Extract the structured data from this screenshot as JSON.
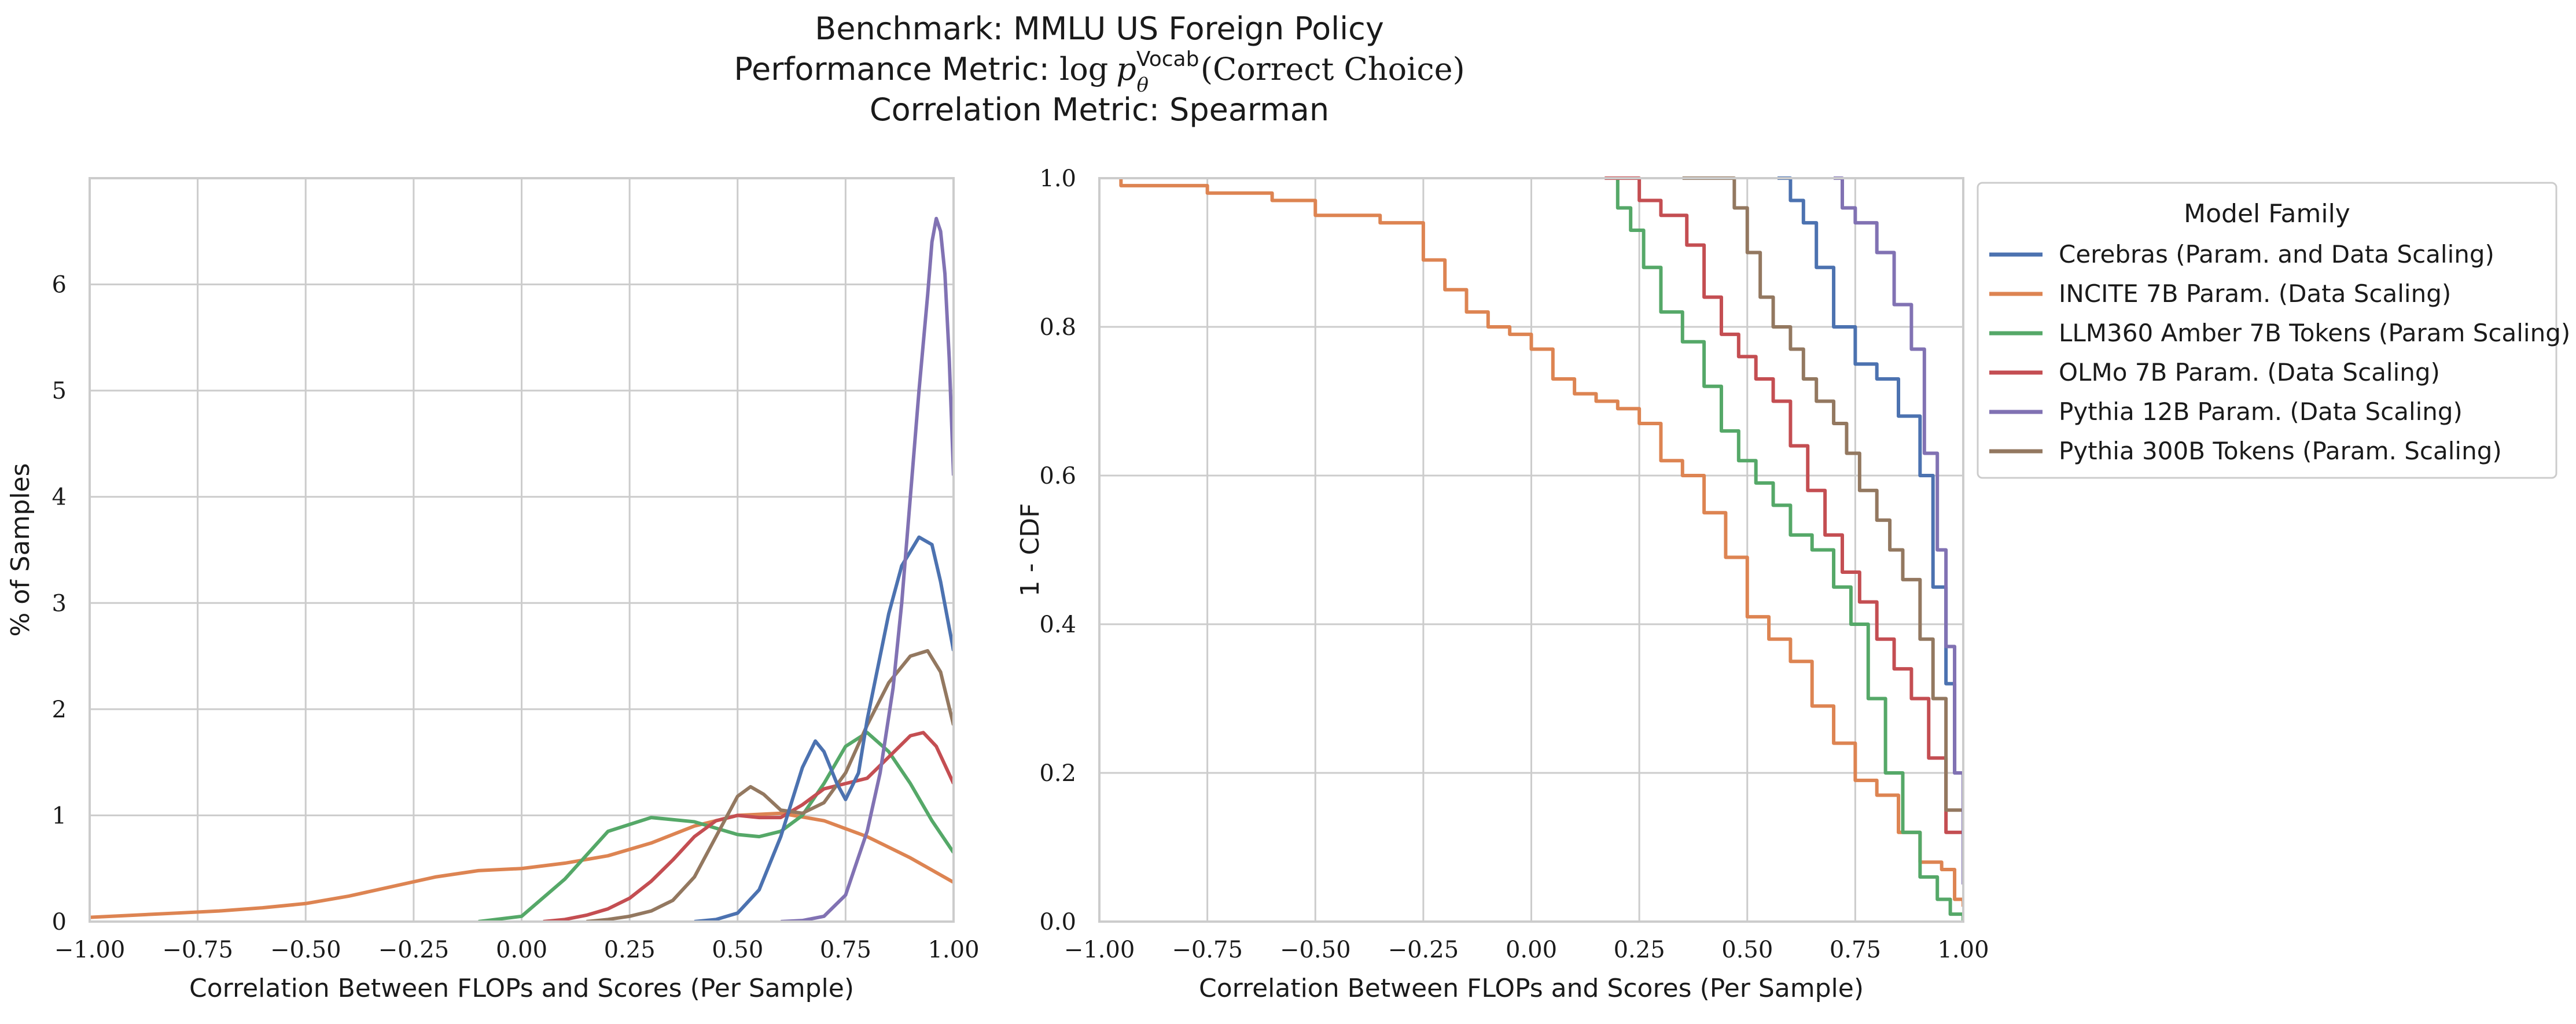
{
  "title": {
    "line1": "Benchmark: MMLU US Foreign Policy",
    "line2_prefix": "Performance Metric: ",
    "line2_math_log": "log",
    "line2_math_p": "p",
    "line2_math_sup": "Vocab",
    "line2_math_sub": "θ",
    "line2_suffix": "(Correct Choice)",
    "line3": "Correlation Metric: Spearman"
  },
  "colors": {
    "Cerebras": "#4c72b0",
    "INCITE": "#dd8452",
    "LLM360": "#55a868",
    "OLMo": "#c44e52",
    "Pythia12B": "#8172b3",
    "Pythia300B": "#937860"
  },
  "legend": {
    "title": "Model Family",
    "entries": [
      {
        "key": "Cerebras",
        "label": "Cerebras (Param. and Data Scaling)"
      },
      {
        "key": "INCITE",
        "label": "INCITE 7B Param. (Data Scaling)"
      },
      {
        "key": "LLM360",
        "label": "LLM360 Amber 7B Tokens (Param Scaling)"
      },
      {
        "key": "OLMo",
        "label": "OLMo 7B Param. (Data Scaling)"
      },
      {
        "key": "Pythia12B",
        "label": "Pythia 12B Param. (Data Scaling)"
      },
      {
        "key": "Pythia300B",
        "label": "Pythia 300B Tokens (Param. Scaling)"
      }
    ]
  },
  "chart_data": [
    {
      "type": "line",
      "xlabel": "Correlation Between FLOPs and Scores (Per Sample)",
      "ylabel": "% of Samples",
      "xlim": [
        -1.0,
        1.0
      ],
      "ylim": [
        0,
        7
      ],
      "xticks": [
        "−1.00",
        "−0.75",
        "−0.50",
        "−0.25",
        "0.00",
        "0.25",
        "0.50",
        "0.75",
        "1.00"
      ],
      "yticks": [
        "0",
        "1",
        "2",
        "3",
        "4",
        "5",
        "6"
      ],
      "grid": true,
      "series": [
        {
          "key": "INCITE",
          "x": [
            -1.0,
            -0.9,
            -0.8,
            -0.7,
            -0.6,
            -0.5,
            -0.4,
            -0.3,
            -0.2,
            -0.1,
            0.0,
            0.1,
            0.2,
            0.3,
            0.4,
            0.5,
            0.6,
            0.7,
            0.8,
            0.9,
            1.0
          ],
          "y": [
            0.04,
            0.06,
            0.08,
            0.1,
            0.13,
            0.17,
            0.24,
            0.33,
            0.42,
            0.48,
            0.5,
            0.55,
            0.62,
            0.74,
            0.9,
            1.0,
            1.02,
            0.95,
            0.8,
            0.6,
            0.37
          ]
        },
        {
          "key": "LLM360",
          "x": [
            -0.1,
            0.0,
            0.1,
            0.2,
            0.3,
            0.4,
            0.45,
            0.5,
            0.55,
            0.6,
            0.65,
            0.7,
            0.75,
            0.8,
            0.85,
            0.9,
            0.95,
            1.0
          ],
          "y": [
            0.0,
            0.05,
            0.4,
            0.85,
            0.98,
            0.94,
            0.88,
            0.82,
            0.8,
            0.85,
            1.0,
            1.3,
            1.65,
            1.78,
            1.6,
            1.3,
            0.95,
            0.65
          ]
        },
        {
          "key": "OLMo",
          "x": [
            0.05,
            0.1,
            0.15,
            0.2,
            0.25,
            0.3,
            0.35,
            0.4,
            0.45,
            0.5,
            0.55,
            0.6,
            0.65,
            0.7,
            0.75,
            0.8,
            0.85,
            0.9,
            0.93,
            0.96,
            1.0
          ],
          "y": [
            0.0,
            0.02,
            0.06,
            0.12,
            0.22,
            0.38,
            0.58,
            0.8,
            0.95,
            1.0,
            0.98,
            0.98,
            1.1,
            1.25,
            1.3,
            1.35,
            1.55,
            1.75,
            1.78,
            1.65,
            1.3
          ]
        },
        {
          "key": "Pythia300B",
          "x": [
            0.15,
            0.2,
            0.25,
            0.3,
            0.35,
            0.4,
            0.45,
            0.5,
            0.53,
            0.56,
            0.6,
            0.65,
            0.7,
            0.75,
            0.8,
            0.85,
            0.9,
            0.94,
            0.97,
            1.0
          ],
          "y": [
            0.0,
            0.02,
            0.05,
            0.1,
            0.2,
            0.42,
            0.8,
            1.18,
            1.27,
            1.2,
            1.05,
            1.02,
            1.12,
            1.4,
            1.85,
            2.25,
            2.5,
            2.55,
            2.35,
            1.85
          ]
        },
        {
          "key": "Cerebras",
          "x": [
            0.4,
            0.45,
            0.5,
            0.55,
            0.6,
            0.65,
            0.68,
            0.7,
            0.73,
            0.75,
            0.78,
            0.8,
            0.85,
            0.88,
            0.92,
            0.95,
            0.97,
            1.0
          ],
          "y": [
            0.0,
            0.02,
            0.08,
            0.3,
            0.8,
            1.45,
            1.7,
            1.6,
            1.3,
            1.15,
            1.4,
            1.9,
            2.9,
            3.35,
            3.62,
            3.55,
            3.2,
            2.55
          ]
        },
        {
          "key": "Pythia12B",
          "x": [
            0.6,
            0.65,
            0.7,
            0.75,
            0.8,
            0.83,
            0.86,
            0.88,
            0.9,
            0.92,
            0.94,
            0.95,
            0.96,
            0.97,
            0.98,
            0.99,
            1.0
          ],
          "y": [
            0.0,
            0.01,
            0.05,
            0.25,
            0.85,
            1.4,
            2.2,
            3.0,
            4.0,
            5.0,
            5.9,
            6.4,
            6.62,
            6.5,
            6.1,
            5.3,
            4.2
          ]
        }
      ]
    },
    {
      "type": "line",
      "xlabel": "Correlation Between FLOPs and Scores (Per Sample)",
      "ylabel": "1 - CDF",
      "xlim": [
        -1.0,
        1.0
      ],
      "ylim": [
        0,
        1.0
      ],
      "xticks": [
        "−1.00",
        "−0.75",
        "−0.50",
        "−0.25",
        "0.00",
        "0.25",
        "0.50",
        "0.75",
        "1.00"
      ],
      "yticks": [
        "0.0",
        "0.2",
        "0.4",
        "0.6",
        "0.8",
        "1.0"
      ],
      "grid": true,
      "series": [
        {
          "key": "INCITE",
          "x": [
            -0.95,
            -0.75,
            -0.6,
            -0.5,
            -0.35,
            -0.25,
            -0.2,
            -0.15,
            -0.1,
            -0.05,
            0.0,
            0.05,
            0.1,
            0.15,
            0.2,
            0.25,
            0.3,
            0.35,
            0.4,
            0.45,
            0.5,
            0.55,
            0.6,
            0.65,
            0.7,
            0.75,
            0.8,
            0.85,
            0.9,
            0.95,
            0.98,
            1.0
          ],
          "y": [
            0.99,
            0.98,
            0.97,
            0.95,
            0.94,
            0.89,
            0.85,
            0.82,
            0.8,
            0.79,
            0.77,
            0.73,
            0.71,
            0.7,
            0.69,
            0.67,
            0.62,
            0.6,
            0.55,
            0.49,
            0.41,
            0.38,
            0.35,
            0.29,
            0.24,
            0.19,
            0.17,
            0.12,
            0.08,
            0.07,
            0.03,
            0.02
          ]
        },
        {
          "key": "LLM360",
          "x": [
            0.17,
            0.2,
            0.23,
            0.26,
            0.3,
            0.35,
            0.4,
            0.44,
            0.48,
            0.52,
            0.56,
            0.6,
            0.65,
            0.7,
            0.74,
            0.78,
            0.82,
            0.86,
            0.9,
            0.94,
            0.97,
            1.0
          ],
          "y": [
            1.0,
            0.96,
            0.93,
            0.88,
            0.82,
            0.78,
            0.72,
            0.66,
            0.62,
            0.59,
            0.56,
            0.52,
            0.5,
            0.45,
            0.4,
            0.3,
            0.2,
            0.12,
            0.06,
            0.03,
            0.01,
            0.0
          ]
        },
        {
          "key": "OLMo",
          "x": [
            0.17,
            0.25,
            0.3,
            0.36,
            0.4,
            0.44,
            0.48,
            0.52,
            0.56,
            0.6,
            0.64,
            0.68,
            0.72,
            0.76,
            0.8,
            0.84,
            0.88,
            0.92,
            0.96,
            1.0
          ],
          "y": [
            1.0,
            0.97,
            0.95,
            0.91,
            0.84,
            0.79,
            0.76,
            0.73,
            0.7,
            0.64,
            0.58,
            0.52,
            0.47,
            0.43,
            0.38,
            0.34,
            0.3,
            0.22,
            0.12,
            0.07
          ]
        },
        {
          "key": "Pythia300B",
          "x": [
            0.35,
            0.47,
            0.5,
            0.53,
            0.56,
            0.6,
            0.63,
            0.66,
            0.7,
            0.73,
            0.76,
            0.8,
            0.83,
            0.86,
            0.9,
            0.93,
            0.96,
            1.0
          ],
          "y": [
            1.0,
            0.96,
            0.9,
            0.84,
            0.8,
            0.77,
            0.73,
            0.7,
            0.67,
            0.63,
            0.58,
            0.54,
            0.5,
            0.46,
            0.38,
            0.3,
            0.15,
            0.07
          ]
        },
        {
          "key": "Cerebras",
          "x": [
            0.57,
            0.6,
            0.63,
            0.66,
            0.7,
            0.75,
            0.8,
            0.85,
            0.9,
            0.93,
            0.96,
            0.98,
            1.0
          ],
          "y": [
            1.0,
            0.97,
            0.94,
            0.88,
            0.8,
            0.75,
            0.73,
            0.68,
            0.6,
            0.45,
            0.32,
            0.2,
            0.08
          ]
        },
        {
          "key": "Pythia12B",
          "x": [
            0.7,
            0.72,
            0.75,
            0.8,
            0.84,
            0.88,
            0.91,
            0.94,
            0.96,
            0.98,
            1.0
          ],
          "y": [
            1.0,
            0.96,
            0.94,
            0.9,
            0.83,
            0.77,
            0.63,
            0.5,
            0.37,
            0.2,
            0.05
          ]
        }
      ]
    }
  ]
}
